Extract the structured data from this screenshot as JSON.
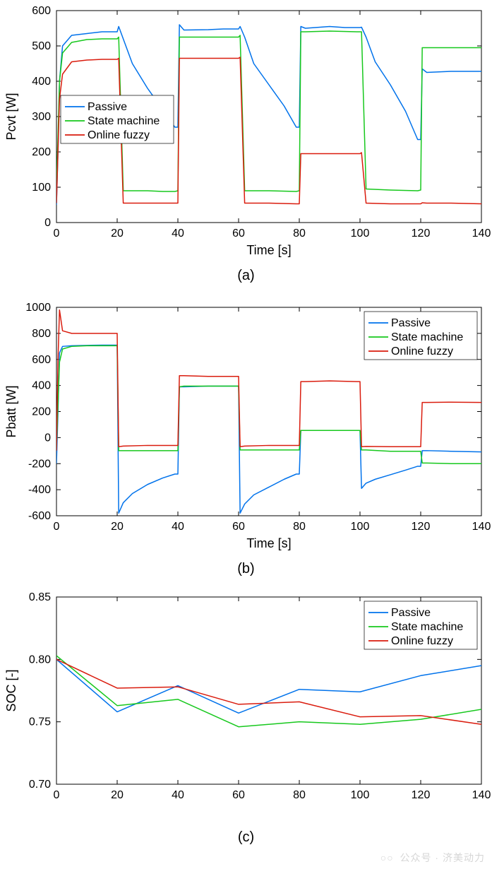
{
  "global": {
    "font_family": "Arial",
    "axis_color": "#000000",
    "grid_color": "#ffffff",
    "background_color": "#ffffff",
    "line_width": 1.5,
    "tick_fontsize": 16,
    "label_fontsize": 18,
    "legend_fontsize": 16,
    "sublabel_fontsize": 20
  },
  "series_colors": {
    "passive": "#0072EB",
    "state_machine": "#17C81D",
    "online_fuzzy": "#DA1C0E"
  },
  "legend_labels": {
    "passive": "Passive",
    "state_machine": "State machine",
    "online_fuzzy": "Online fuzzy"
  },
  "charts": {
    "a": {
      "sublabel": "(a)",
      "type": "line",
      "xlabel": "Time [s]",
      "ylabel": "Pcvt [W]",
      "xlim": [
        0,
        140
      ],
      "ylim": [
        0,
        600
      ],
      "xtick_step": 20,
      "ytick_step": 100,
      "legend_pos": "upper-left-inner",
      "series": {
        "passive": {
          "x": [
            0,
            0.5,
            1,
            2,
            5,
            10,
            15,
            19,
            20,
            20.5,
            22,
            25,
            30,
            35,
            39,
            40,
            40.5,
            42,
            50,
            55,
            59,
            60,
            60.5,
            62,
            65,
            70,
            75,
            79,
            80,
            80.5,
            82,
            90,
            95,
            99,
            100,
            100.5,
            102,
            105,
            110,
            115,
            119,
            120,
            120.5,
            122,
            130,
            140
          ],
          "y": [
            50,
            200,
            400,
            500,
            530,
            535,
            540,
            540,
            540,
            555,
            520,
            450,
            380,
            320,
            270,
            270,
            560,
            545,
            546,
            548,
            548,
            548,
            555,
            525,
            450,
            390,
            330,
            270,
            270,
            555,
            550,
            555,
            552,
            552,
            552,
            553,
            525,
            455,
            390,
            315,
            235,
            235,
            435,
            425,
            428,
            428
          ]
        },
        "state_machine": {
          "x": [
            0,
            1,
            2,
            5,
            10,
            15,
            19,
            20,
            20.5,
            22,
            30,
            35,
            39,
            40,
            40.5,
            42,
            50,
            59,
            60,
            60.5,
            62,
            70,
            79,
            80,
            80.5,
            82,
            90,
            99,
            100,
            100.5,
            102,
            110,
            119,
            120,
            120.5,
            122,
            130,
            140
          ],
          "y": [
            95,
            400,
            480,
            510,
            518,
            520,
            520,
            520,
            525,
            90,
            90,
            88,
            88,
            90,
            525,
            525,
            525,
            525,
            525,
            530,
            90,
            90,
            88,
            90,
            540,
            540,
            542,
            540,
            540,
            540,
            95,
            92,
            90,
            92,
            495,
            495,
            495,
            495
          ]
        },
        "online_fuzzy": {
          "x": [
            0,
            1,
            2,
            5,
            10,
            15,
            19,
            20,
            20.5,
            22,
            30,
            39,
            40,
            40.5,
            42,
            50,
            59,
            60,
            60.5,
            62,
            70,
            79,
            80,
            80.5,
            82,
            90,
            99,
            100,
            100.5,
            102,
            110,
            119,
            120,
            120.5,
            122,
            130,
            140
          ],
          "y": [
            55,
            350,
            420,
            455,
            460,
            462,
            462,
            462,
            465,
            55,
            55,
            55,
            55,
            465,
            465,
            465,
            465,
            465,
            468,
            55,
            55,
            53,
            53,
            195,
            195,
            195,
            195,
            195,
            198,
            55,
            53,
            53,
            53,
            56,
            55,
            55,
            53
          ]
        }
      }
    },
    "b": {
      "sublabel": "(b)",
      "type": "line",
      "xlabel": "Time [s]",
      "ylabel": "Pbatt [W]",
      "xlim": [
        0,
        140
      ],
      "ylim": [
        -600,
        1000
      ],
      "xtick_step": 20,
      "ytick_step": 200,
      "legend_pos": "upper-right-inner",
      "series": {
        "passive": {
          "x": [
            0,
            0.5,
            1,
            2,
            5,
            10,
            15,
            19,
            20,
            20.5,
            22,
            25,
            30,
            35,
            39,
            40,
            40.5,
            42,
            50,
            59,
            60,
            60.5,
            62,
            65,
            70,
            75,
            79,
            80,
            80.5,
            82,
            90,
            99,
            100,
            100.5,
            102,
            105,
            110,
            115,
            119,
            120,
            120.5,
            122,
            130,
            140
          ],
          "y": [
            -200,
            200,
            650,
            700,
            705,
            708,
            710,
            710,
            710,
            -580,
            -500,
            -430,
            -360,
            -310,
            -280,
            -280,
            390,
            390,
            395,
            395,
            395,
            -580,
            -510,
            -440,
            -380,
            -320,
            -280,
            -280,
            55,
            55,
            55,
            55,
            55,
            -390,
            -350,
            -320,
            -285,
            -250,
            -220,
            -220,
            -100,
            -100,
            -105,
            -110
          ]
        },
        "state_machine": {
          "x": [
            0,
            1,
            2,
            5,
            10,
            15,
            19,
            20,
            20.5,
            22,
            30,
            39,
            40,
            40.5,
            42,
            50,
            59,
            60,
            60.5,
            62,
            70,
            79,
            80,
            80.5,
            82,
            90,
            99,
            100,
            100.5,
            102,
            110,
            119,
            120,
            120.5,
            122,
            130,
            140
          ],
          "y": [
            -80,
            580,
            680,
            700,
            705,
            705,
            705,
            705,
            -100,
            -100,
            -100,
            -100,
            -100,
            390,
            395,
            395,
            395,
            395,
            -95,
            -95,
            -95,
            -95,
            -95,
            55,
            55,
            55,
            55,
            55,
            -95,
            -95,
            -105,
            -105,
            -105,
            -195,
            -195,
            -200,
            -200
          ]
        },
        "online_fuzzy": {
          "x": [
            0,
            0.5,
            1,
            2,
            5,
            10,
            15,
            19,
            20,
            20.5,
            22,
            30,
            39,
            40,
            40.5,
            42,
            50,
            59,
            60,
            60.5,
            62,
            70,
            79,
            80,
            80.5,
            82,
            90,
            99,
            100,
            100.5,
            102,
            110,
            119,
            120,
            120.5,
            122,
            130,
            140
          ],
          "y": [
            -100,
            600,
            980,
            820,
            800,
            800,
            800,
            800,
            800,
            -70,
            -65,
            -60,
            -60,
            -60,
            475,
            475,
            470,
            470,
            470,
            -70,
            -65,
            -60,
            -60,
            -60,
            430,
            430,
            435,
            430,
            430,
            -70,
            -68,
            -70,
            -70,
            -70,
            270,
            270,
            272,
            270
          ]
        }
      }
    },
    "c": {
      "sublabel": "(c)",
      "type": "line",
      "xlabel": "",
      "ylabel": "SOC [-]",
      "xlim": [
        0,
        140
      ],
      "ylim": [
        0.7,
        0.85
      ],
      "xtick_step": 20,
      "ytick_step": 0.05,
      "legend_pos": "upper-right-inner",
      "series": {
        "passive": {
          "x": [
            0,
            20,
            40,
            60,
            80,
            100,
            120,
            140
          ],
          "y": [
            0.8,
            0.758,
            0.779,
            0.757,
            0.776,
            0.774,
            0.787,
            0.795
          ]
        },
        "state_machine": {
          "x": [
            0,
            20,
            40,
            60,
            80,
            100,
            120,
            140
          ],
          "y": [
            0.803,
            0.763,
            0.768,
            0.746,
            0.75,
            0.748,
            0.752,
            0.76
          ]
        },
        "online_fuzzy": {
          "x": [
            0,
            20,
            40,
            60,
            80,
            100,
            120,
            140
          ],
          "y": [
            0.8,
            0.777,
            0.778,
            0.764,
            0.766,
            0.754,
            0.755,
            0.748
          ]
        }
      }
    }
  },
  "watermark": {
    "text": "公众号 · 济美动力"
  }
}
